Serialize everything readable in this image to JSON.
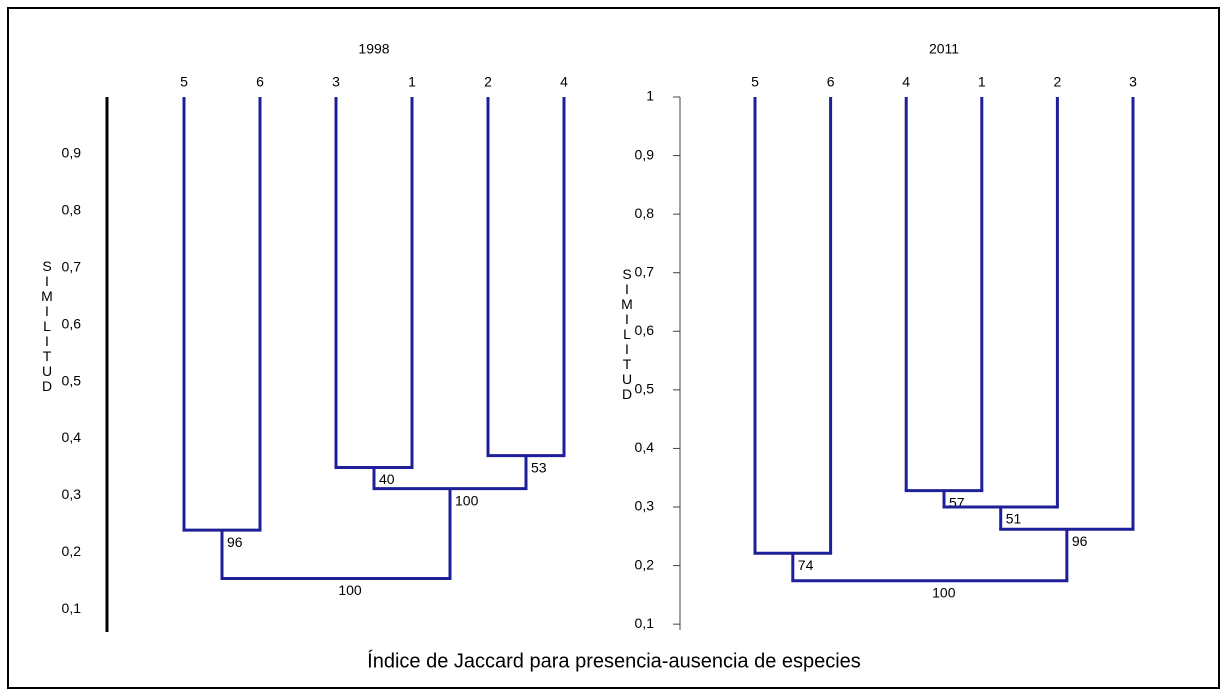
{
  "chart_data": [
    {
      "type": "dendrogram",
      "title": "1998",
      "ylabel": "SIMILITUD",
      "color": "#1f1f99",
      "tick_marks": false,
      "ylim": [
        0.06,
        1
      ],
      "yticks": [
        {
          "value": 0.1,
          "label": "0,1"
        },
        {
          "value": 0.2,
          "label": "0,2"
        },
        {
          "value": 0.3,
          "label": "0,3"
        },
        {
          "value": 0.4,
          "label": "0,4"
        },
        {
          "value": 0.5,
          "label": "0,5"
        },
        {
          "value": 0.6,
          "label": "0,6"
        },
        {
          "value": 0.7,
          "label": "0,7"
        },
        {
          "value": 0.8,
          "label": "0,8"
        },
        {
          "value": 0.9,
          "label": "0,9"
        }
      ],
      "tree": {
        "height": 0.154,
        "support": 100,
        "children": [
          {
            "height": 0.239,
            "support": 96,
            "children": [
              {
                "label": "5"
              },
              {
                "label": "6"
              }
            ]
          },
          {
            "height": 0.312,
            "support": 100,
            "children": [
              {
                "height": 0.349,
                "support": 40,
                "children": [
                  {
                    "label": "3"
                  },
                  {
                    "label": "1"
                  }
                ]
              },
              {
                "height": 0.37,
                "support": 53,
                "children": [
                  {
                    "label": "2"
                  },
                  {
                    "label": "4"
                  }
                ]
              }
            ]
          }
        ]
      }
    },
    {
      "type": "dendrogram",
      "title": "2011",
      "ylabel": "SIMILITUD",
      "color": "#1f1f99",
      "tick_marks": true,
      "ylim": [
        0.09,
        1
      ],
      "yticks": [
        {
          "value": 0.1,
          "label": "0,1"
        },
        {
          "value": 0.2,
          "label": "0,2"
        },
        {
          "value": 0.3,
          "label": "0,3"
        },
        {
          "value": 0.4,
          "label": "0,4"
        },
        {
          "value": 0.5,
          "label": "0,5"
        },
        {
          "value": 0.6,
          "label": "0,6"
        },
        {
          "value": 0.7,
          "label": "0,7"
        },
        {
          "value": 0.8,
          "label": "0,8"
        },
        {
          "value": 0.9,
          "label": "0,9"
        },
        1
      ],
      "tree": {
        "height": 0.174,
        "support": 100,
        "children": [
          {
            "height": 0.221,
            "support": 74,
            "children": [
              {
                "label": "5"
              },
              {
                "label": "6"
              }
            ]
          },
          {
            "height": 0.262,
            "support": 96,
            "children": [
              {
                "height": 0.3,
                "support": 51,
                "children": [
                  {
                    "height": 0.328,
                    "support": 57,
                    "children": [
                      {
                        "label": "4"
                      },
                      {
                        "label": "1"
                      }
                    ]
                  },
                  {
                    "label": "2"
                  }
                ]
              },
              {
                "label": "3"
              }
            ]
          }
        ]
      }
    }
  ],
  "caption": "Índice de Jaccard para presencia-ausencia de especies"
}
